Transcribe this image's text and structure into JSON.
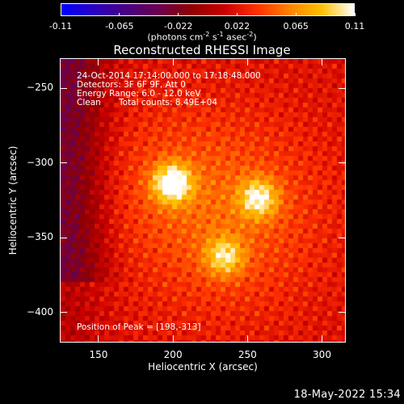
{
  "colorbar": {
    "ticks": [
      "-0.11",
      "-0.065",
      "-0.022",
      "0.022",
      "0.065",
      "0.11"
    ],
    "units_prefix": "(photons cm",
    "units_exp1": "-2",
    "units_mid1": " s",
    "units_exp2": "-1",
    "units_mid2": " asec",
    "units_exp3": "-2",
    "units_suffix": ")",
    "colormap": [
      "#0000ff",
      "#2a00c0",
      "#4a0080",
      "#6a0050",
      "#900000",
      "#c80000",
      "#ff3000",
      "#ff8000",
      "#ffc000",
      "#ffffff"
    ]
  },
  "chart_data": {
    "type": "heatmap",
    "title": "Reconstructed RHESSI Image",
    "xlabel": "Heliocentric X (arcsec)",
    "ylabel": "Heliocentric Y (arcsec)",
    "xlim": [
      124,
      316
    ],
    "ylim": [
      -420,
      -230
    ],
    "xticks": [
      150,
      200,
      250,
      300
    ],
    "yticks": [
      -250,
      -300,
      -350,
      -400
    ],
    "value_range": [
      -0.11,
      0.11
    ],
    "sources": [
      {
        "x": 199,
        "y": -313,
        "relative_intensity": 1.0
      },
      {
        "x": 257,
        "y": -323,
        "relative_intensity": 0.75
      },
      {
        "x": 234,
        "y": -362,
        "relative_intensity": 0.65
      }
    ],
    "peak": {
      "x": 198,
      "y": -313
    },
    "annotations": {
      "time": "24-Oct-2014 17:14:00.000 to 17:18:48.000",
      "detectors": "Detectors: 3F 6F 9F, Att 0",
      "energy": "Energy Range: 6.0 - 12.0 keV",
      "method": "Clean",
      "counts": "Total counts: 8.49E+04",
      "peak_text": "Position of Peak = [198,-313]"
    }
  },
  "footer": {
    "date": "18-May-2022 15:34"
  }
}
